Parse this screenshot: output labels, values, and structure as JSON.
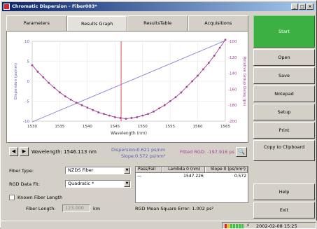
{
  "window": {
    "title": "Chromatic Dispersion - Fiber003*",
    "min": "_",
    "max": "□",
    "close": "×"
  },
  "tabs": [
    "Parameters",
    "Results Graph",
    "ResultsTable",
    "Acquisitions"
  ],
  "chart_data": {
    "type": "line",
    "xlabel": "Wavelength (nm)",
    "ylabel_left": "Dispersion (ps/nm)",
    "ylabel_right": "Relative Group Delay (ps)",
    "xlim": [
      1530,
      1565
    ],
    "x_ticks": [
      "1530",
      "1535",
      "1540",
      "1545",
      "1550",
      "1555",
      "1560",
      "1565"
    ],
    "y_left_ticks": [
      "10",
      "5",
      "0",
      "-5",
      "-10"
    ],
    "y_left_lim": [
      -10,
      10
    ],
    "y_right_ticks": [
      "-100",
      "-120",
      "-140",
      "-160",
      "-180",
      "-200"
    ],
    "y_right_lim": [
      -200,
      -100
    ],
    "marker_x": 1546.113,
    "series": [
      {
        "axis": "left",
        "color": "#8080d8",
        "x": [
          1530,
          1565
        ],
        "y": [
          -10.2,
          10.2
        ]
      },
      {
        "axis": "right",
        "color": "#a04090",
        "marker": true,
        "x": [
          1530,
          1531,
          1532,
          1533,
          1534,
          1535,
          1536,
          1537,
          1538,
          1539,
          1540,
          1541,
          1542,
          1543,
          1544,
          1545,
          1546,
          1547,
          1548,
          1549,
          1550,
          1551,
          1552,
          1553,
          1554,
          1555,
          1556,
          1557,
          1558,
          1559,
          1560,
          1561,
          1562,
          1563,
          1564,
          1565
        ],
        "y": [
          -130,
          -138,
          -145,
          -152,
          -158,
          -164,
          -169,
          -173,
          -177,
          -180,
          -183,
          -186,
          -189,
          -191,
          -193,
          -195,
          -196,
          -197,
          -196,
          -195,
          -193,
          -191,
          -188,
          -184,
          -180,
          -175,
          -170,
          -164,
          -157,
          -150,
          -143,
          -135,
          -127,
          -118,
          -108,
          -98
        ]
      }
    ]
  },
  "nav": {
    "prev": "◀",
    "next": "▶"
  },
  "readout": {
    "wavelength": "Wavelength: 1546.113 nm",
    "dispersion_label": "Dispersion:",
    "dispersion_value": "-0.621 ps/nm",
    "slope_label": "Slope:",
    "slope_value": "0.572 ps/nm²",
    "fitted_rgd": "Fitted RGD: -197.916 ps",
    "zoom": "🔍"
  },
  "form": {
    "fiber_type_label": "Fiber Type:",
    "fiber_type_value": "NZDS Fiber",
    "rgd_fit_label": "RGD Data Fit:",
    "rgd_fit_value": "Quadratic *",
    "known_length_label": "Known Fiber Length",
    "fiber_length_label": "Fiber Length:",
    "fiber_length_value": "123.000",
    "fiber_length_unit": "km",
    "arrow": "▼"
  },
  "table": {
    "headers": [
      "Pass/Fail",
      "Lambda 0 (nm)",
      "Slope 0 (ps/nm²)"
    ],
    "row": [
      "—",
      "1547.226",
      "0.572"
    ]
  },
  "rgd_error": "RGD Mean Square Error:   1.002 ps²",
  "sidebar": [
    "Start",
    "Open",
    "Save",
    "Notepad",
    "Setup",
    "Print",
    "Copy to Clipboard",
    "Help",
    "Exit"
  ],
  "status": {
    "datetime": "2002-02-08 15:25"
  }
}
